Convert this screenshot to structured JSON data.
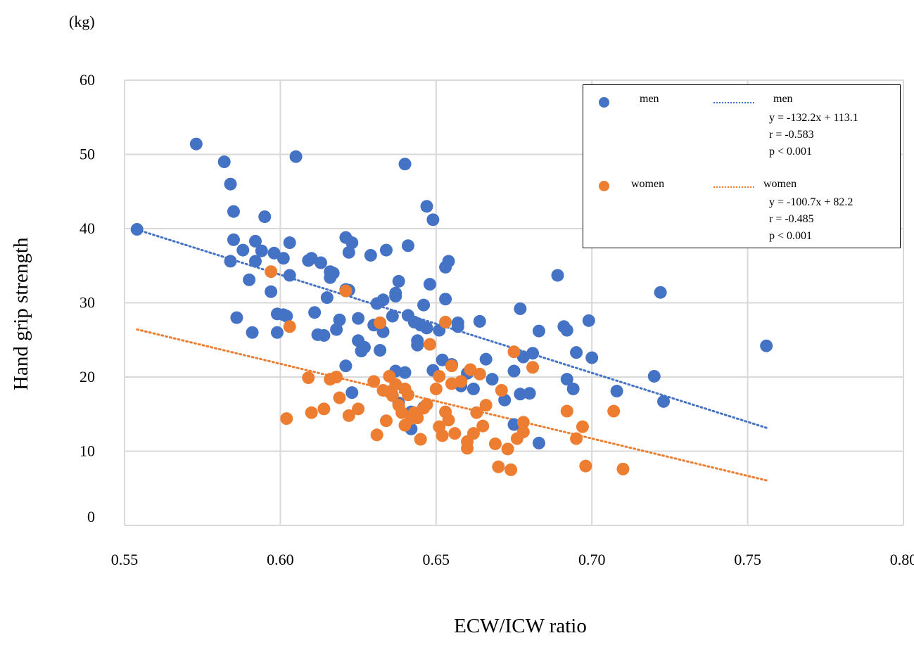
{
  "unit_label": "(kg)",
  "legend": {
    "men_marker_label": "men",
    "men_line_label": "men",
    "men_equation": "y = -132.2x + 113.1",
    "men_r": "r = -0.583",
    "men_p": "p < 0.001",
    "women_marker_label": "women",
    "women_line_label": "women",
    "women_equation": "y = -100.7x + 82.2",
    "women_r": "r = -0.485",
    "women_p": "p < 0.001"
  },
  "colors": {
    "men": "#4472C4",
    "women": "#ED7D31",
    "grid": "#D9D9D9"
  },
  "chart_data": {
    "type": "scatter",
    "xlabel": "ECW/ICW ratio",
    "ylabel": "Hand grip strength",
    "xlim": [
      0.55,
      0.8
    ],
    "ylim": [
      0,
      60
    ],
    "xticks": [
      "0.55",
      "0.60",
      "0.65",
      "0.70",
      "0.75",
      "0.80"
    ],
    "yticks": [
      "0",
      "10",
      "20",
      "30",
      "40",
      "50",
      "60"
    ],
    "grid": true,
    "legend_position": "top-right",
    "series": [
      {
        "name": "men",
        "trendline": {
          "slope": -132.2,
          "intercept": 113.1,
          "x_range": [
            0.554,
            0.756
          ]
        },
        "points": [
          [
            0.554,
            39.9
          ],
          [
            0.573,
            51.4
          ],
          [
            0.582,
            49.0
          ],
          [
            0.584,
            46.0
          ],
          [
            0.585,
            42.3
          ],
          [
            0.585,
            38.5
          ],
          [
            0.584,
            35.6
          ],
          [
            0.586,
            28.0
          ],
          [
            0.588,
            37.1
          ],
          [
            0.59,
            33.1
          ],
          [
            0.591,
            26.0
          ],
          [
            0.592,
            38.3
          ],
          [
            0.592,
            35.6
          ],
          [
            0.594,
            37.0
          ],
          [
            0.595,
            41.6
          ],
          [
            0.597,
            31.5
          ],
          [
            0.598,
            36.7
          ],
          [
            0.599,
            28.5
          ],
          [
            0.599,
            26.0
          ],
          [
            0.601,
            36.0
          ],
          [
            0.601,
            28.4
          ],
          [
            0.602,
            28.2
          ],
          [
            0.603,
            38.1
          ],
          [
            0.603,
            33.7
          ],
          [
            0.605,
            49.7
          ],
          [
            0.609,
            35.7
          ],
          [
            0.61,
            36.0
          ],
          [
            0.611,
            28.7
          ],
          [
            0.612,
            25.7
          ],
          [
            0.613,
            35.4
          ],
          [
            0.614,
            25.6
          ],
          [
            0.615,
            30.7
          ],
          [
            0.616,
            34.2
          ],
          [
            0.616,
            33.4
          ],
          [
            0.617,
            34.0
          ],
          [
            0.618,
            26.4
          ],
          [
            0.619,
            27.7
          ],
          [
            0.621,
            38.8
          ],
          [
            0.621,
            31.8
          ],
          [
            0.621,
            21.5
          ],
          [
            0.622,
            36.8
          ],
          [
            0.622,
            31.7
          ],
          [
            0.623,
            38.1
          ],
          [
            0.623,
            17.9
          ],
          [
            0.625,
            27.9
          ],
          [
            0.625,
            24.9
          ],
          [
            0.626,
            23.5
          ],
          [
            0.627,
            24.0
          ],
          [
            0.629,
            36.4
          ],
          [
            0.63,
            27.0
          ],
          [
            0.631,
            29.9
          ],
          [
            0.632,
            27.3
          ],
          [
            0.632,
            23.6
          ],
          [
            0.633,
            30.4
          ],
          [
            0.633,
            26.1
          ],
          [
            0.634,
            37.1
          ],
          [
            0.636,
            28.2
          ],
          [
            0.637,
            30.9
          ],
          [
            0.637,
            31.3
          ],
          [
            0.637,
            20.8
          ],
          [
            0.638,
            32.9
          ],
          [
            0.638,
            16.5
          ],
          [
            0.64,
            48.7
          ],
          [
            0.64,
            20.6
          ],
          [
            0.641,
            37.7
          ],
          [
            0.641,
            28.3
          ],
          [
            0.642,
            15.3
          ],
          [
            0.642,
            13.0
          ],
          [
            0.643,
            27.4
          ],
          [
            0.644,
            24.9
          ],
          [
            0.644,
            24.3
          ],
          [
            0.645,
            27.0
          ],
          [
            0.646,
            29.7
          ],
          [
            0.646,
            15.9
          ],
          [
            0.647,
            26.6
          ],
          [
            0.647,
            43.0
          ],
          [
            0.648,
            32.5
          ],
          [
            0.649,
            41.2
          ],
          [
            0.649,
            20.9
          ],
          [
            0.651,
            26.3
          ],
          [
            0.652,
            22.3
          ],
          [
            0.653,
            34.8
          ],
          [
            0.653,
            30.5
          ],
          [
            0.654,
            35.6
          ],
          [
            0.655,
            21.7
          ],
          [
            0.657,
            26.8
          ],
          [
            0.657,
            27.3
          ],
          [
            0.658,
            18.8
          ],
          [
            0.66,
            20.5
          ],
          [
            0.662,
            18.4
          ],
          [
            0.664,
            27.5
          ],
          [
            0.666,
            22.4
          ],
          [
            0.668,
            19.7
          ],
          [
            0.672,
            16.9
          ],
          [
            0.675,
            20.8
          ],
          [
            0.675,
            13.6
          ],
          [
            0.677,
            29.2
          ],
          [
            0.677,
            17.7
          ],
          [
            0.678,
            22.7
          ],
          [
            0.68,
            17.8
          ],
          [
            0.681,
            23.2
          ],
          [
            0.683,
            11.1
          ],
          [
            0.683,
            26.2
          ],
          [
            0.689,
            33.7
          ],
          [
            0.691,
            26.8
          ],
          [
            0.692,
            26.3
          ],
          [
            0.692,
            19.7
          ],
          [
            0.694,
            18.4
          ],
          [
            0.695,
            23.3
          ],
          [
            0.699,
            27.6
          ],
          [
            0.7,
            22.6
          ],
          [
            0.708,
            18.1
          ],
          [
            0.72,
            20.1
          ],
          [
            0.722,
            31.4
          ],
          [
            0.723,
            16.7
          ],
          [
            0.756,
            24.2
          ]
        ]
      },
      {
        "name": "women",
        "trendline": {
          "slope": -100.7,
          "intercept": 82.2,
          "x_range": [
            0.554,
            0.756
          ]
        },
        "points": [
          [
            0.597,
            34.2
          ],
          [
            0.602,
            14.4
          ],
          [
            0.603,
            26.8
          ],
          [
            0.609,
            19.9
          ],
          [
            0.61,
            15.2
          ],
          [
            0.614,
            15.7
          ],
          [
            0.616,
            19.7
          ],
          [
            0.618,
            20.0
          ],
          [
            0.619,
            17.2
          ],
          [
            0.621,
            31.6
          ],
          [
            0.622,
            14.8
          ],
          [
            0.625,
            15.7
          ],
          [
            0.63,
            19.4
          ],
          [
            0.631,
            12.2
          ],
          [
            0.632,
            27.3
          ],
          [
            0.633,
            18.2
          ],
          [
            0.634,
            14.1
          ],
          [
            0.635,
            20.1
          ],
          [
            0.635,
            18.0
          ],
          [
            0.636,
            17.5
          ],
          [
            0.637,
            19.0
          ],
          [
            0.638,
            16.2
          ],
          [
            0.639,
            15.2
          ],
          [
            0.64,
            13.5
          ],
          [
            0.64,
            18.4
          ],
          [
            0.641,
            17.6
          ],
          [
            0.642,
            14.4
          ],
          [
            0.643,
            15.2
          ],
          [
            0.644,
            14.5
          ],
          [
            0.645,
            11.6
          ],
          [
            0.646,
            15.8
          ],
          [
            0.647,
            16.3
          ],
          [
            0.648,
            24.4
          ],
          [
            0.65,
            18.4
          ],
          [
            0.651,
            20.1
          ],
          [
            0.651,
            13.3
          ],
          [
            0.652,
            12.1
          ],
          [
            0.653,
            15.3
          ],
          [
            0.653,
            27.4
          ],
          [
            0.654,
            14.2
          ],
          [
            0.655,
            19.1
          ],
          [
            0.655,
            21.5
          ],
          [
            0.656,
            12.4
          ],
          [
            0.658,
            19.4
          ],
          [
            0.66,
            10.4
          ],
          [
            0.66,
            11.3
          ],
          [
            0.661,
            21.0
          ],
          [
            0.662,
            12.4
          ],
          [
            0.663,
            15.2
          ],
          [
            0.664,
            20.4
          ],
          [
            0.665,
            13.4
          ],
          [
            0.666,
            16.2
          ],
          [
            0.669,
            11.0
          ],
          [
            0.67,
            7.9
          ],
          [
            0.671,
            18.2
          ],
          [
            0.673,
            10.3
          ],
          [
            0.674,
            7.5
          ],
          [
            0.675,
            23.4
          ],
          [
            0.676,
            11.7
          ],
          [
            0.678,
            12.6
          ],
          [
            0.678,
            13.9
          ],
          [
            0.681,
            21.3
          ],
          [
            0.692,
            15.4
          ],
          [
            0.695,
            11.7
          ],
          [
            0.697,
            13.3
          ],
          [
            0.698,
            8.0
          ],
          [
            0.707,
            15.4
          ],
          [
            0.71,
            7.6
          ]
        ]
      }
    ]
  }
}
